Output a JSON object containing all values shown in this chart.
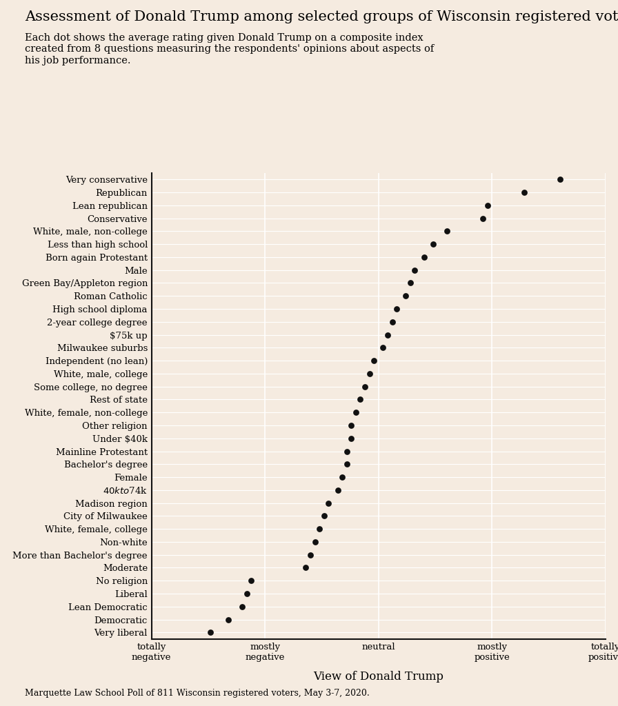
{
  "title": "Assessment of Donald Trump among selected groups of Wisconsin registered voters",
  "subtitle": "Each dot shows the average rating given Donald Trump on a composite index\ncreated from 8 questions measuring the respondents' opinions about aspects of\nhis job performance.",
  "footnote": "Marquette Law School Poll of 811 Wisconsin registered voters, May 3-7, 2020.",
  "xlabel": "View of Donald Trump",
  "categories": [
    "Very conservative",
    "Republican",
    "Lean republican",
    "Conservative",
    "White, male, non-college",
    "Less than high school",
    "Born again Protestant",
    "Male",
    "Green Bay/Appleton region",
    "Roman Catholic",
    "High school diploma",
    "2-year college degree",
    "$75k up",
    "Milwaukee suburbs",
    "Independent (no lean)",
    "White, male, college",
    "Some college, no degree",
    "Rest of state",
    "White, female, non-college",
    "Other religion",
    "Under $40k",
    "Mainline Protestant",
    "Bachelor's degree",
    "Female",
    "$40k to $74k",
    "Madison region",
    "City of Milwaukee",
    "White, female, college",
    "Non-white",
    "More than Bachelor's degree",
    "Moderate",
    "No religion",
    "Liberal",
    "Lean Democratic",
    "Democratic",
    "Very liberal"
  ],
  "values": [
    90,
    82,
    74,
    73,
    65,
    62,
    60,
    58,
    57,
    56,
    54,
    53,
    52,
    51,
    49,
    48,
    47,
    46,
    45,
    44,
    44,
    43,
    43,
    42,
    41,
    39,
    38,
    37,
    36,
    35,
    34,
    22,
    21,
    20,
    17,
    13
  ],
  "xlim": [
    0,
    100
  ],
  "xticks": [
    0,
    25,
    50,
    75,
    100
  ],
  "xticklabels": [
    "totally\nnegative",
    "mostly\nnegative",
    "neutral",
    "mostly\npositive",
    "totally\npositive"
  ],
  "dot_color": "#111111",
  "bg_color": "#f5ebe0",
  "grid_color": "#ffffff",
  "title_fontsize": 15,
  "subtitle_fontsize": 10.5,
  "category_fontsize": 9.5,
  "tick_fontsize": 9.5,
  "xlabel_fontsize": 12,
  "footnote_fontsize": 9,
  "dot_size": 40
}
